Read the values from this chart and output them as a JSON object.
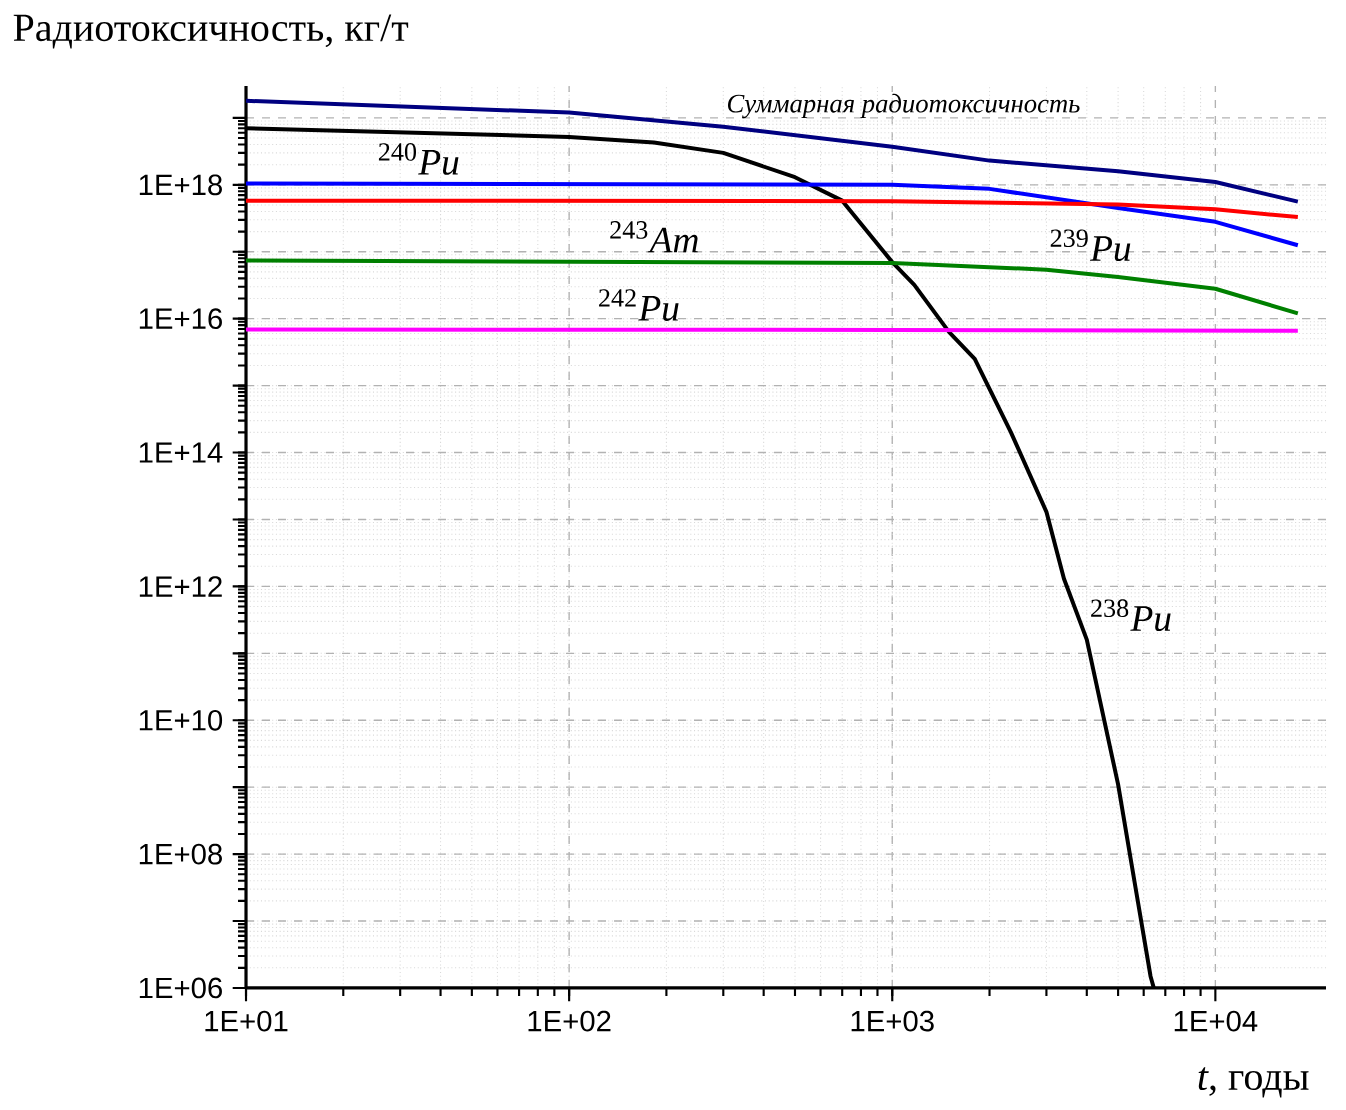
{
  "chart_data": {
    "type": "line",
    "xlabel": "*t*, годы",
    "ylabel": "Радиотоксичность, кг/т",
    "log": "xy",
    "grid": true,
    "xlim": [
      10,
      22000
    ],
    "ylim": [
      1000000.0,
      3e+19
    ],
    "xticks": [
      {
        "value": 10,
        "label": "1E+01"
      },
      {
        "value": 100,
        "label": "1E+02"
      },
      {
        "value": 1000,
        "label": "1E+03"
      },
      {
        "value": 10000,
        "label": "1E+04"
      }
    ],
    "yticks": [
      {
        "value": 1000000.0,
        "label": "1E+06"
      },
      {
        "value": 10000000.0,
        "label": null
      },
      {
        "value": 100000000.0,
        "label": "1E+08"
      },
      {
        "value": 1000000000.0,
        "label": null
      },
      {
        "value": 10000000000.0,
        "label": "1E+10"
      },
      {
        "value": 100000000000.0,
        "label": null
      },
      {
        "value": 1000000000000.0,
        "label": "1E+12"
      },
      {
        "value": 10000000000000.0,
        "label": null
      },
      {
        "value": 100000000000000.0,
        "label": "1E+14"
      },
      {
        "value": 1000000000000000.0,
        "label": null
      },
      {
        "value": 1e+16,
        "label": "1E+16"
      },
      {
        "value": 1e+17,
        "label": null
      },
      {
        "value": 1e+18,
        "label": "1E+18"
      },
      {
        "value": 1e+19,
        "label": null
      }
    ],
    "series": [
      {
        "color": "#000080",
        "x": [
          10,
          100,
          300,
          1000,
          2000,
          5000,
          10000,
          18000
        ],
        "values": [
          1.8e+19,
          1.2e+19,
          7.4e+18,
          3.7e+18,
          2.3e+18,
          1.6e+18,
          1.1e+18,
          5.6e+17
        ]
      },
      {
        "color": "#000000",
        "x": [
          10,
          100,
          183,
          300,
          500,
          700,
          1000,
          1170,
          1500,
          1800,
          2330,
          3000,
          3400,
          4000,
          5000,
          5700,
          6300,
          6450
        ],
        "values": [
          7e+18,
          5.2e+18,
          4.3e+18,
          3e+18,
          1.3e+18,
          5.8e+17,
          7e+16,
          3.2e+16,
          6300000000000000.0,
          2500000000000000.0,
          200000000000000.0,
          13000000000000.0,
          1300000000000.0,
          160000000000.0,
          1100000000.0,
          26000000.0,
          1500000.0,
          1000000.0
        ]
      },
      {
        "color": "#0000ff",
        "x": [
          10,
          1000,
          2000,
          5000,
          10000,
          18000
        ],
        "values": [
          1.05e+18,
          1e+18,
          8.7e+17,
          4.5e+17,
          2.8e+17,
          1.25e+17
        ]
      },
      {
        "color": "#ff0000",
        "x": [
          10,
          1000,
          5000,
          10000,
          18000
        ],
        "values": [
          5.8e+17,
          5.7e+17,
          5.1e+17,
          4.3e+17,
          3.3e+17
        ]
      },
      {
        "color": "#008000",
        "x": [
          10,
          1000,
          3000,
          5000,
          10000,
          18000
        ],
        "values": [
          7.4e+16,
          6.8e+16,
          5.4e+16,
          4.2e+16,
          2.8e+16,
          1.2e+16
        ]
      },
      {
        "color": "#ff00ff",
        "x": [
          10,
          1000,
          18000
        ],
        "values": [
          6900000000000000.0,
          6800000000000000.0,
          6600000000000000.0
        ]
      }
    ],
    "annotations": [
      {
        "text": "*Суммарная радиотоксичность*",
        "x": 300,
        "y": 7.4e+18
      },
      {
        "text": "$^{240}$*Pu*",
        "x": 25,
        "y": 1.05e+18
      },
      {
        "text": "$^{243}$*Am*",
        "x": 130,
        "y": 7.3e+16
      },
      {
        "text": "$^{239}$*Pu*",
        "x": 3000,
        "y": 5.4e+16
      },
      {
        "text": "$^{242}$*Pu*",
        "x": 120,
        "y": 6900000000000000.0
      },
      {
        "text": "$^{238}$*Pu*",
        "x": 4000,
        "y": 160000000000.0
      }
    ]
  }
}
